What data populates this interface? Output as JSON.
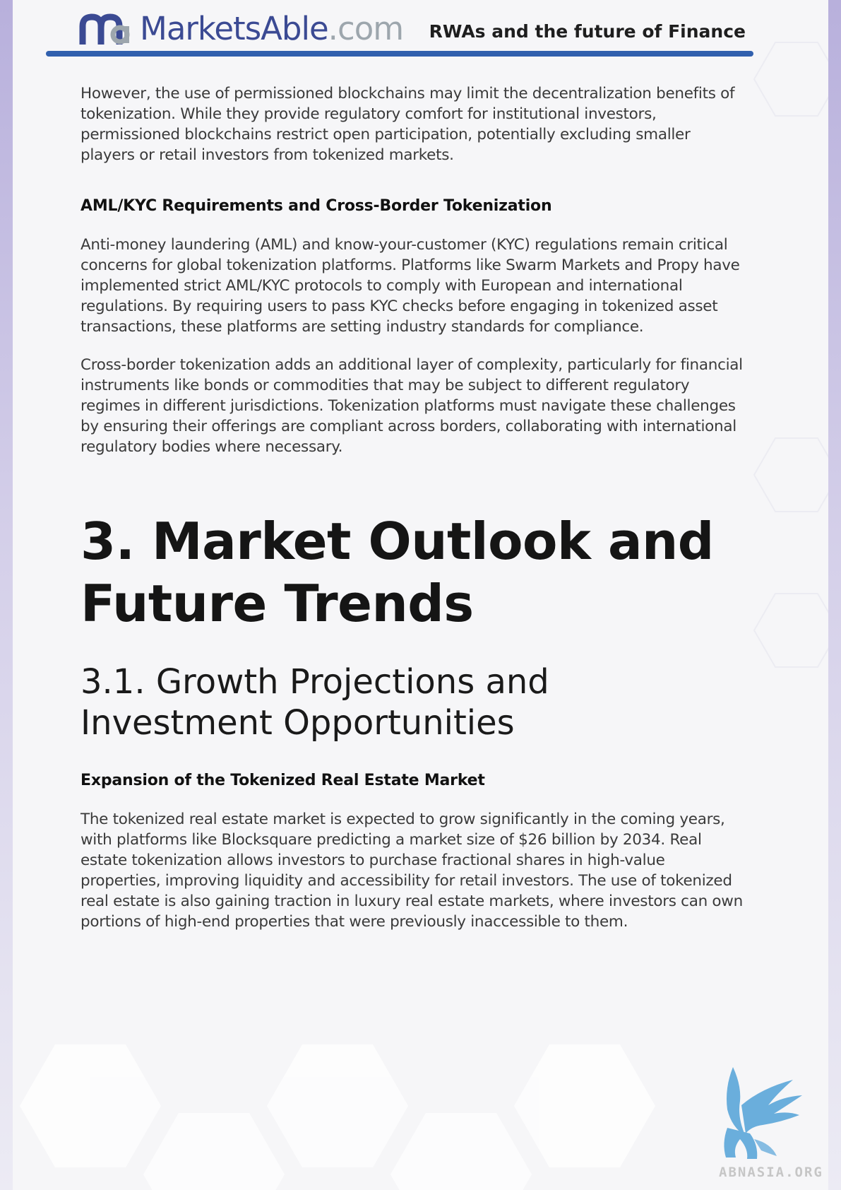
{
  "header": {
    "logo_brand": "MarketsAble",
    "logo_tld": ".com",
    "title": "RWAs and the future of Finance"
  },
  "content": {
    "intro_paragraph": "However, the use of permissioned blockchains may limit the decentralization benefits of tokenization. While they provide regulatory comfort for institutional investors, permissioned blockchains restrict open participation, potentially excluding smaller players or retail investors from tokenized markets.",
    "aml_heading": "AML/KYC Requirements and Cross-Border Tokenization",
    "aml_paragraph_1": "Anti-money laundering (AML) and know-your-customer (KYC) regulations remain critical concerns for global tokenization platforms. Platforms like Swarm Markets and Propy have implemented strict AML/KYC protocols to comply with European and international regulations. By requiring users to pass KYC checks before engaging in tokenized asset transactions, these platforms are setting industry standards for compliance.",
    "aml_paragraph_2": "Cross-border tokenization adds an additional layer of complexity, particularly for financial instruments like bonds or commodities that may be subject to different regulatory regimes in different jurisdictions. Tokenization platforms must navigate these challenges by ensuring their offerings are compliant across borders, collaborating with international regulatory bodies where necessary.",
    "section_title": "3. Market Outlook and Future Trends",
    "subsection_title": "3.1. Growth Projections and Investment Opportunities",
    "real_estate_heading": "Expansion of the Tokenized Real Estate Market",
    "real_estate_paragraph": "The tokenized real estate market is expected to grow significantly in the coming years, with platforms like Blocksquare predicting a market size of $26 billion by 2034. Real estate tokenization allows investors to purchase fractional shares in high-value properties, improving liquidity and accessibility for retail investors. The use of tokenized real estate is also gaining traction in luxury real estate markets, where investors can own portions of high-end properties that were previously inaccessible to them."
  },
  "footer": {
    "watermark": "ABNASIA.ORG"
  },
  "colors": {
    "brand_blue": "#3b4a93",
    "rule_blue": "#3160ae",
    "tld_gray": "#9da6ad",
    "bird_blue": "#6aaedc"
  },
  "icons": {
    "logo": "marketsable-logo-mark",
    "footer": "winged-creature-icon"
  }
}
